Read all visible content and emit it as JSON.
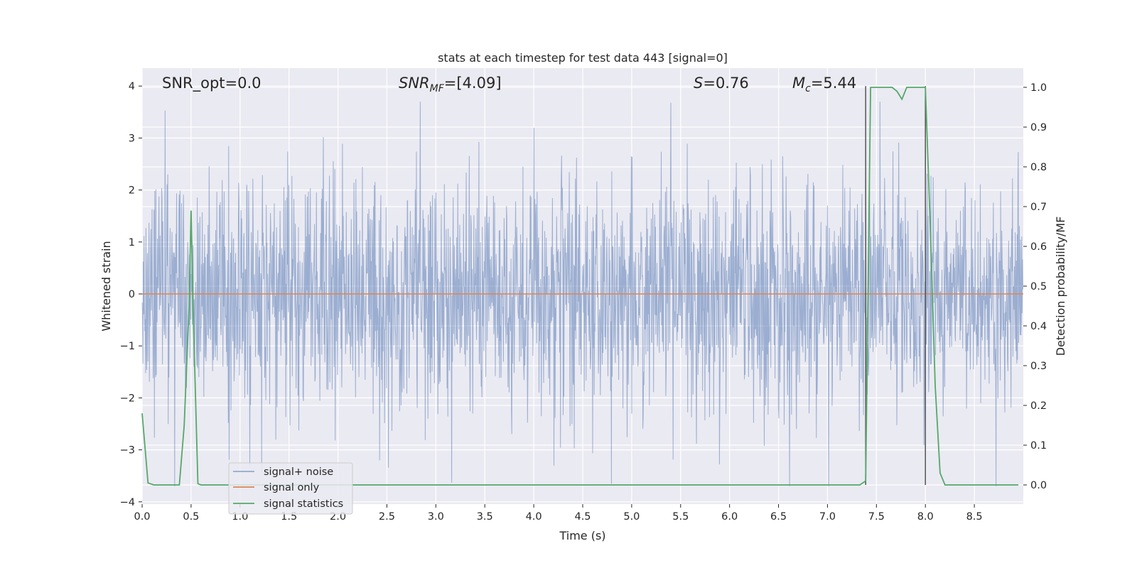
{
  "chart_data": {
    "type": "line",
    "title": "stats at each timestep for test data 443 [signal=0]",
    "xlabel": "Time (s)",
    "ylabel_left": "Whitened strain",
    "ylabel_right": "Detection probability/MF",
    "xlim": [
      0,
      9
    ],
    "ylim_left": [
      -4.2,
      4.4
    ],
    "ylim_right": [
      -0.045,
      1.04
    ],
    "x_ticks": [
      "0.0",
      "0.5",
      "1.0",
      "1.5",
      "2.0",
      "2.5",
      "3.0",
      "3.5",
      "4.0",
      "4.5",
      "5.0",
      "5.5",
      "6.0",
      "6.5",
      "7.0",
      "7.5",
      "8.0",
      "8.5"
    ],
    "y_ticks_left": [
      "−4",
      "−3",
      "−2",
      "−1",
      "0",
      "1",
      "2",
      "3",
      "4"
    ],
    "y_ticks_right": [
      "0.0",
      "0.1",
      "0.2",
      "0.3",
      "0.4",
      "0.5",
      "0.6",
      "0.7",
      "0.8",
      "0.9",
      "1.0"
    ],
    "grid": true,
    "legend_position": "lower-left",
    "annotations": {
      "snr_opt": "SNR_opt=0.0",
      "snr_mf_sym": "SNR",
      "snr_mf_sub": "MF",
      "snr_mf_val": "=[4.09]",
      "s_sym": "S",
      "s_val": "=0.76",
      "mc_sym": "M",
      "mc_sub": "c",
      "mc_val": "=5.44"
    },
    "vertical_markers": [
      7.39,
      8.0
    ],
    "series": [
      {
        "name": "signal+ noise",
        "color": "#4c72b0",
        "description": "whitened noise, roughly N(0,1) sampled over 0-9 s",
        "approx_range": [
          -3.7,
          3.7
        ]
      },
      {
        "name": "signal only",
        "color": "#dd8452",
        "x": [
          0,
          9
        ],
        "y": [
          0,
          0
        ]
      },
      {
        "name": "signal statistics",
        "color": "#55a868",
        "axis": "right",
        "x": [
          0,
          0.06,
          0.12,
          0.38,
          0.43,
          0.48,
          0.5,
          0.52,
          0.57,
          0.6,
          7.33,
          7.39,
          7.44,
          7.5,
          7.55,
          7.6,
          7.66,
          7.71,
          7.76,
          7.81,
          7.86,
          7.92,
          8.0,
          8.05,
          8.1,
          8.15,
          8.2,
          8.25,
          8.95
        ],
        "y": [
          0.18,
          0.005,
          0.0,
          0.0,
          0.15,
          0.45,
          0.69,
          0.45,
          0.003,
          0.0,
          0.0,
          0.01,
          1.0,
          1.0,
          1.0,
          1.0,
          1.0,
          0.99,
          0.97,
          1.0,
          1.0,
          1.0,
          1.0,
          0.65,
          0.25,
          0.03,
          0.0,
          0.0,
          0.0
        ]
      }
    ]
  }
}
